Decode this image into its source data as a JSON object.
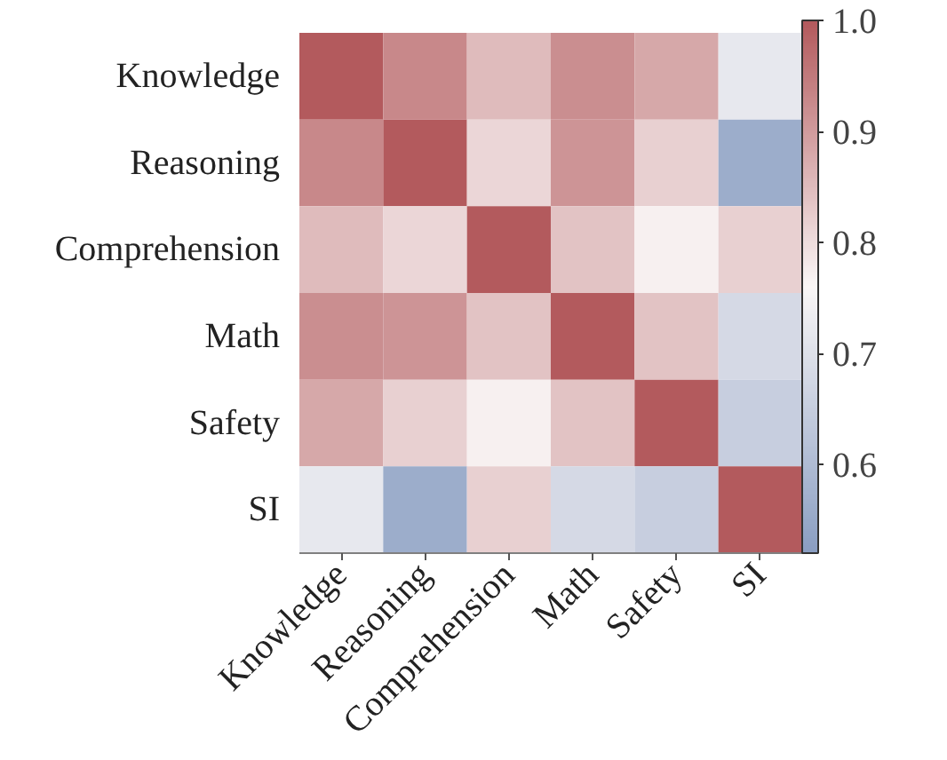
{
  "chart_data": {
    "type": "heatmap",
    "categories": [
      "Knowledge",
      "Reasoning",
      "Comprehension",
      "Math",
      "Safety",
      "SI"
    ],
    "y_categories": [
      "Knowledge",
      "Reasoning",
      "Comprehension",
      "Math",
      "Safety",
      "SI"
    ],
    "cells": [
      [
        1.0,
        0.93,
        0.85,
        0.92,
        0.88,
        0.72
      ],
      [
        0.93,
        1.0,
        0.81,
        0.91,
        0.82,
        0.56
      ],
      [
        0.85,
        0.81,
        1.0,
        0.84,
        0.77,
        0.82
      ],
      [
        0.92,
        0.91,
        0.84,
        1.0,
        0.84,
        0.68
      ],
      [
        0.88,
        0.82,
        0.77,
        0.84,
        1.0,
        0.65
      ],
      [
        0.72,
        0.56,
        0.82,
        0.68,
        0.65,
        1.0
      ]
    ],
    "clim": [
      0.52,
      1.0
    ],
    "cticks": [
      0.6,
      0.7,
      0.8,
      0.9,
      {
        "value": 1.0,
        "label": "1.0"
      }
    ],
    "grid": false
  }
}
